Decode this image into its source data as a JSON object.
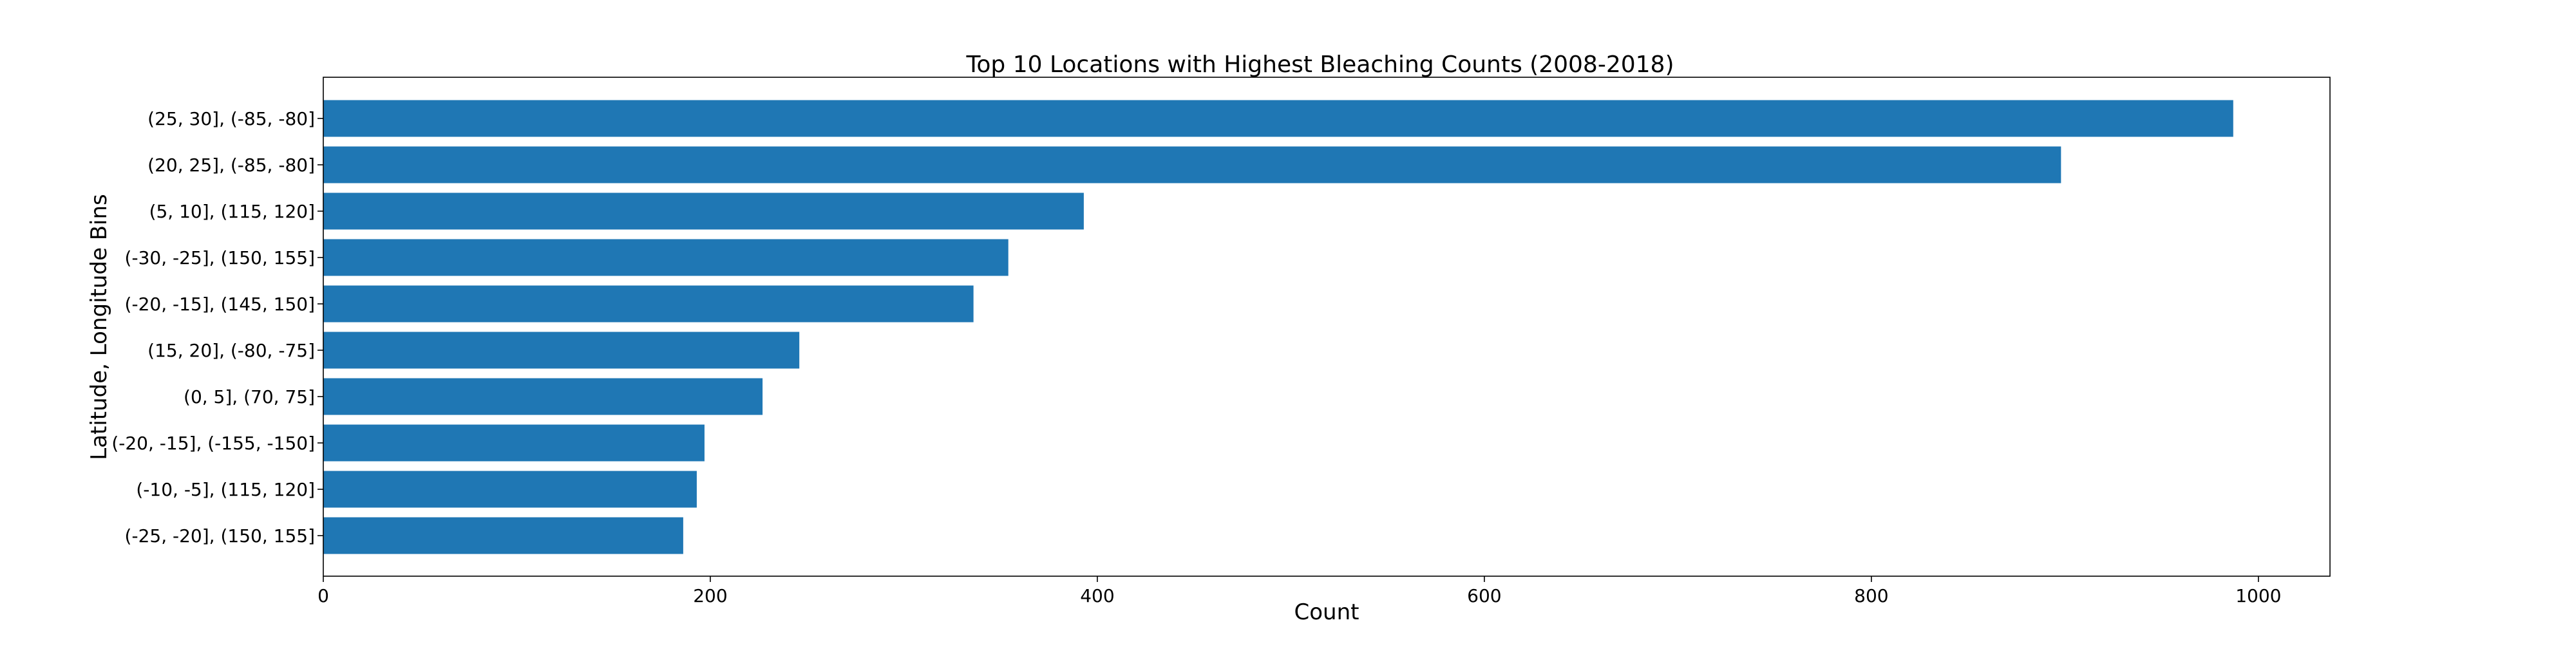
{
  "chart_data": {
    "type": "bar",
    "orientation": "horizontal",
    "title": "Top 10 Locations with Highest Bleaching Counts (2008-2018)",
    "xlabel": "Count",
    "ylabel": "Latitude, Longitude Bins",
    "categories": [
      "(25, 30], (-85, -80]",
      "(20, 25], (-85, -80]",
      "(5, 10], (115, 120]",
      "(-30, -25], (150, 155]",
      "(-20, -15], (145, 150]",
      "(15, 20], (-80, -75]",
      "(0, 5], (70, 75]",
      "(-20, -15], (-155, -150]",
      "(-10, -5], (115, 120]",
      "(-25, -20], (150, 155]"
    ],
    "values": [
      987,
      898,
      393,
      354,
      336,
      246,
      227,
      197,
      193,
      186
    ],
    "xlim": [
      0,
      1037
    ],
    "xticks": [
      0,
      200,
      400,
      600,
      800,
      1000
    ],
    "bar_color": "#1f77b4",
    "grid": false
  }
}
